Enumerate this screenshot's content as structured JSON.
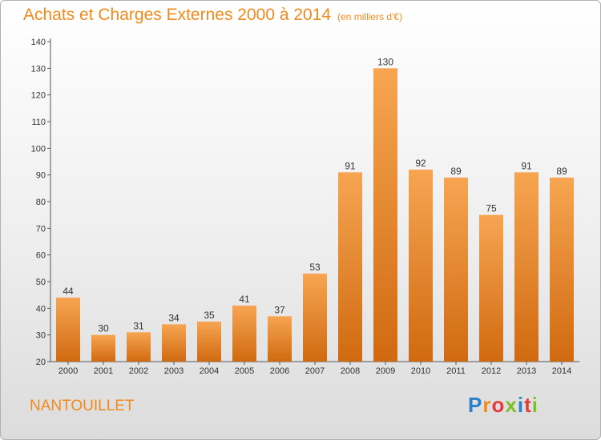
{
  "header": {
    "title": "Achats et Charges Externes 2000 à 2014",
    "unit": "(en milliers d'€)"
  },
  "footer": {
    "commune": "NANTOUILLET",
    "logo": {
      "letters": [
        "P",
        "r",
        "o",
        "x",
        "i",
        "t",
        "i"
      ],
      "colors": [
        "#2a7fc9",
        "#f08a1c",
        "#e23b3b",
        "#7bbf2a",
        "#2a7fc9",
        "#e23b3b",
        "#7bbf2a"
      ]
    }
  },
  "chart_data": {
    "type": "bar",
    "categories": [
      "2000",
      "2001",
      "2002",
      "2003",
      "2004",
      "2005",
      "2006",
      "2007",
      "2008",
      "2009",
      "2010",
      "2011",
      "2012",
      "2013",
      "2014"
    ],
    "values": [
      44,
      30,
      31,
      34,
      35,
      41,
      37,
      53,
      91,
      130,
      92,
      89,
      75,
      91,
      89
    ],
    "ylim": [
      20,
      140
    ],
    "yticks": [
      20,
      30,
      40,
      50,
      60,
      70,
      80,
      90,
      100,
      110,
      120,
      130,
      140
    ],
    "grid": false,
    "legend": "none",
    "colors": {
      "bar_top": "#f7a552",
      "bar_bottom": "#d06a10",
      "title": "#f08a1c"
    }
  }
}
